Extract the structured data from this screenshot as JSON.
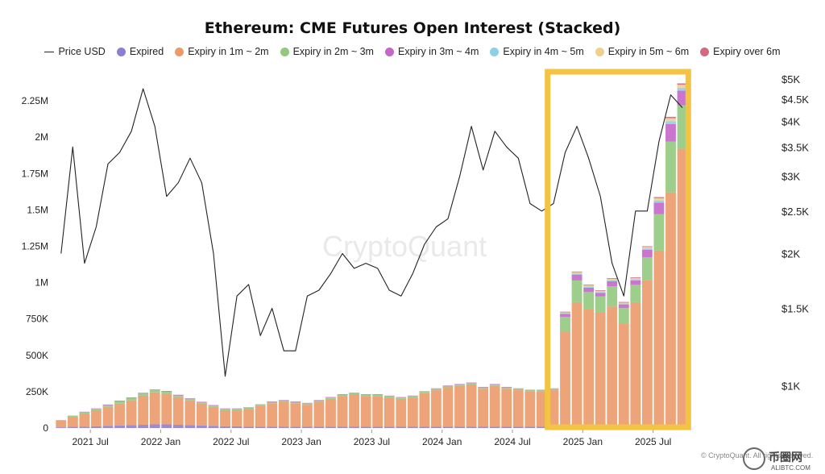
{
  "chart_data": {
    "type": "area",
    "title": "Ethereum: CME Futures Open Interest (Stacked)",
    "watermark": "CryptoQuant",
    "copyright": "© CryptoQuant. All rights reserved.",
    "corner_logo": {
      "title": "币圈网",
      "subtitle": "ALIBTC.COM"
    },
    "x_ticks": [
      "2021 Jul",
      "2022 Jan",
      "2022 Jul",
      "2023 Jan",
      "2023 Jul",
      "2024 Jan",
      "2024 Jul",
      "2025 Jan",
      "2025 Jul"
    ],
    "y_left_ticks": [
      "0",
      "250K",
      "500K",
      "750K",
      "1M",
      "1.25M",
      "1.5M",
      "1.75M",
      "2M",
      "2.25M"
    ],
    "y_left_range": [
      0,
      2400000
    ],
    "y_right_ticks": [
      "$1K",
      "$1.5K",
      "$2K",
      "$2.5K",
      "$3K",
      "$3.5K",
      "$4K",
      "$4.5K",
      "$5K"
    ],
    "y_right_range": [
      800,
      5000
    ],
    "y_right_scale": "log",
    "grid": false,
    "legend_position": "top",
    "highlight_box": {
      "from": "2024-10",
      "to": "2025-09",
      "color": "#f3c443"
    },
    "legend": [
      {
        "name": "Price USD",
        "kind": "line",
        "color": "#222222"
      },
      {
        "name": "Expired",
        "kind": "dot",
        "color": "#8b7fd4"
      },
      {
        "name": "Expiry in 1m ~ 2m",
        "kind": "dot",
        "color": "#ec9a6a"
      },
      {
        "name": "Expiry in 2m ~ 3m",
        "kind": "dot",
        "color": "#92c97e"
      },
      {
        "name": "Expiry in 3m ~ 4m",
        "kind": "dot",
        "color": "#c467c9"
      },
      {
        "name": "Expiry in 4m ~ 5m",
        "kind": "dot",
        "color": "#8ecfe8"
      },
      {
        "name": "Expiry in 5m ~ 6m",
        "kind": "dot",
        "color": "#efd08c"
      },
      {
        "name": "Expiry over 6m",
        "kind": "dot",
        "color": "#d46a7e"
      }
    ],
    "price": {
      "name": "Price USD",
      "points": [
        [
          "2021-04",
          2000
        ],
        [
          "2021-05",
          3500
        ],
        [
          "2021-06",
          1900
        ],
        [
          "2021-07",
          2300
        ],
        [
          "2021-08",
          3200
        ],
        [
          "2021-09",
          3400
        ],
        [
          "2021-10",
          3800
        ],
        [
          "2021-11",
          4750
        ],
        [
          "2021-12",
          3900
        ],
        [
          "2022-01",
          2700
        ],
        [
          "2022-02",
          2900
        ],
        [
          "2022-03",
          3300
        ],
        [
          "2022-04",
          2900
        ],
        [
          "2022-05",
          2000
        ],
        [
          "2022-06",
          1050
        ],
        [
          "2022-07",
          1600
        ],
        [
          "2022-08",
          1700
        ],
        [
          "2022-09",
          1300
        ],
        [
          "2022-10",
          1500
        ],
        [
          "2022-11",
          1200
        ],
        [
          "2022-12",
          1200
        ],
        [
          "2023-01",
          1600
        ],
        [
          "2023-02",
          1650
        ],
        [
          "2023-03",
          1800
        ],
        [
          "2023-04",
          2000
        ],
        [
          "2023-05",
          1850
        ],
        [
          "2023-06",
          1900
        ],
        [
          "2023-07",
          1850
        ],
        [
          "2023-08",
          1650
        ],
        [
          "2023-09",
          1600
        ],
        [
          "2023-10",
          1800
        ],
        [
          "2023-11",
          2100
        ],
        [
          "2023-12",
          2300
        ],
        [
          "2024-01",
          2400
        ],
        [
          "2024-02",
          3000
        ],
        [
          "2024-03",
          3900
        ],
        [
          "2024-04",
          3100
        ],
        [
          "2024-05",
          3800
        ],
        [
          "2024-06",
          3500
        ],
        [
          "2024-07",
          3300
        ],
        [
          "2024-08",
          2600
        ],
        [
          "2024-09",
          2500
        ],
        [
          "2024-10",
          2600
        ],
        [
          "2024-11",
          3400
        ],
        [
          "2024-12",
          3900
        ],
        [
          "2025-01",
          3300
        ],
        [
          "2025-02",
          2700
        ],
        [
          "2025-03",
          1900
        ],
        [
          "2025-04",
          1600
        ],
        [
          "2025-05",
          2500
        ],
        [
          "2025-06",
          2500
        ],
        [
          "2025-07",
          3600
        ],
        [
          "2025-08",
          4600
        ],
        [
          "2025-09",
          4300
        ]
      ]
    },
    "open_interest": {
      "months": [
        "2021-04",
        "2021-05",
        "2021-06",
        "2021-07",
        "2021-08",
        "2021-09",
        "2021-10",
        "2021-11",
        "2021-12",
        "2022-01",
        "2022-02",
        "2022-03",
        "2022-04",
        "2022-05",
        "2022-06",
        "2022-07",
        "2022-08",
        "2022-09",
        "2022-10",
        "2022-11",
        "2022-12",
        "2023-01",
        "2023-02",
        "2023-03",
        "2023-04",
        "2023-05",
        "2023-06",
        "2023-07",
        "2023-08",
        "2023-09",
        "2023-10",
        "2023-11",
        "2023-12",
        "2024-01",
        "2024-02",
        "2024-03",
        "2024-04",
        "2024-05",
        "2024-06",
        "2024-07",
        "2024-08",
        "2024-09",
        "2024-10",
        "2024-11",
        "2024-12",
        "2025-01",
        "2025-02",
        "2025-03",
        "2025-04",
        "2025-05",
        "2025-06",
        "2025-07",
        "2025-08",
        "2025-09"
      ],
      "series": [
        {
          "name": "Expired",
          "values": [
            5000,
            8000,
            10000,
            12000,
            15000,
            18000,
            20000,
            22000,
            25000,
            25000,
            22000,
            20000,
            18000,
            15000,
            12000,
            12000,
            10000,
            10000,
            10000,
            10000,
            10000,
            10000,
            10000,
            10000,
            10000,
            10000,
            10000,
            10000,
            10000,
            10000,
            10000,
            10000,
            10000,
            10000,
            10000,
            10000,
            10000,
            10000,
            10000,
            10000,
            10000,
            10000,
            10000,
            15000,
            15000,
            15000,
            15000,
            15000,
            15000,
            15000,
            15000,
            20000,
            20000,
            20000
          ]
        },
        {
          "name": "Expiry in 1m ~ 2m",
          "values": [
            45000,
            70000,
            90000,
            110000,
            130000,
            150000,
            170000,
            200000,
            220000,
            210000,
            190000,
            170000,
            150000,
            130000,
            110000,
            110000,
            120000,
            140000,
            160000,
            170000,
            160000,
            150000,
            170000,
            190000,
            210000,
            220000,
            210000,
            210000,
            200000,
            190000,
            200000,
            230000,
            250000,
            270000,
            280000,
            290000,
            260000,
            280000,
            260000,
            250000,
            240000,
            240000,
            250000,
            650000,
            850000,
            800000,
            780000,
            820000,
            700000,
            850000,
            1000000,
            1200000,
            1600000,
            1900000
          ]
        },
        {
          "name": "Expiry in 2m ~ 3m",
          "values": [
            5000,
            8000,
            10000,
            10000,
            12000,
            15000,
            15000,
            15000,
            15000,
            15000,
            12000,
            12000,
            10000,
            10000,
            10000,
            10000,
            10000,
            10000,
            10000,
            10000,
            10000,
            10000,
            10000,
            10000,
            10000,
            10000,
            10000,
            10000,
            10000,
            10000,
            10000,
            10000,
            10000,
            10000,
            10000,
            10000,
            10000,
            10000,
            10000,
            10000,
            10000,
            10000,
            10000,
            100000,
            150000,
            120000,
            110000,
            140000,
            110000,
            120000,
            160000,
            250000,
            350000,
            300000
          ]
        },
        {
          "name": "Expiry in 3m ~ 4m",
          "values": [
            0,
            0,
            2000,
            3000,
            5000,
            5000,
            5000,
            5000,
            5000,
            5000,
            5000,
            3000,
            3000,
            3000,
            3000,
            3000,
            3000,
            3000,
            3000,
            3000,
            3000,
            3000,
            3000,
            3000,
            3000,
            3000,
            3000,
            3000,
            3000,
            3000,
            3000,
            3000,
            3000,
            3000,
            3000,
            3000,
            3000,
            3000,
            3000,
            3000,
            3000,
            3000,
            3000,
            20000,
            40000,
            30000,
            25000,
            35000,
            25000,
            30000,
            50000,
            80000,
            120000,
            100000
          ]
        },
        {
          "name": "Expiry in 4m ~ 5m",
          "values": [
            0,
            0,
            0,
            0,
            0,
            0,
            0,
            0,
            0,
            0,
            0,
            0,
            0,
            0,
            0,
            0,
            0,
            0,
            0,
            0,
            0,
            0,
            0,
            0,
            0,
            0,
            0,
            0,
            0,
            0,
            0,
            0,
            0,
            0,
            0,
            0,
            0,
            0,
            0,
            0,
            0,
            0,
            0,
            5000,
            8000,
            8000,
            6000,
            8000,
            6000,
            8000,
            10000,
            15000,
            20000,
            20000
          ]
        },
        {
          "name": "Expiry in 5m ~ 6m",
          "values": [
            0,
            0,
            0,
            0,
            0,
            0,
            0,
            0,
            0,
            0,
            0,
            0,
            0,
            0,
            0,
            0,
            0,
            0,
            0,
            0,
            0,
            0,
            0,
            0,
            0,
            0,
            0,
            0,
            0,
            0,
            0,
            0,
            0,
            0,
            0,
            0,
            0,
            0,
            0,
            0,
            0,
            0,
            0,
            5000,
            8000,
            8000,
            6000,
            8000,
            6000,
            8000,
            10000,
            15000,
            20000,
            20000
          ]
        },
        {
          "name": "Expiry over 6m",
          "values": [
            0,
            0,
            0,
            0,
            0,
            0,
            0,
            0,
            0,
            0,
            0,
            0,
            0,
            0,
            0,
            0,
            0,
            0,
            0,
            0,
            0,
            0,
            0,
            0,
            0,
            0,
            0,
            0,
            0,
            0,
            0,
            0,
            0,
            0,
            0,
            0,
            0,
            0,
            0,
            0,
            0,
            0,
            0,
            5000,
            5000,
            5000,
            5000,
            5000,
            5000,
            5000,
            5000,
            8000,
            10000,
            10000
          ]
        }
      ]
    }
  }
}
